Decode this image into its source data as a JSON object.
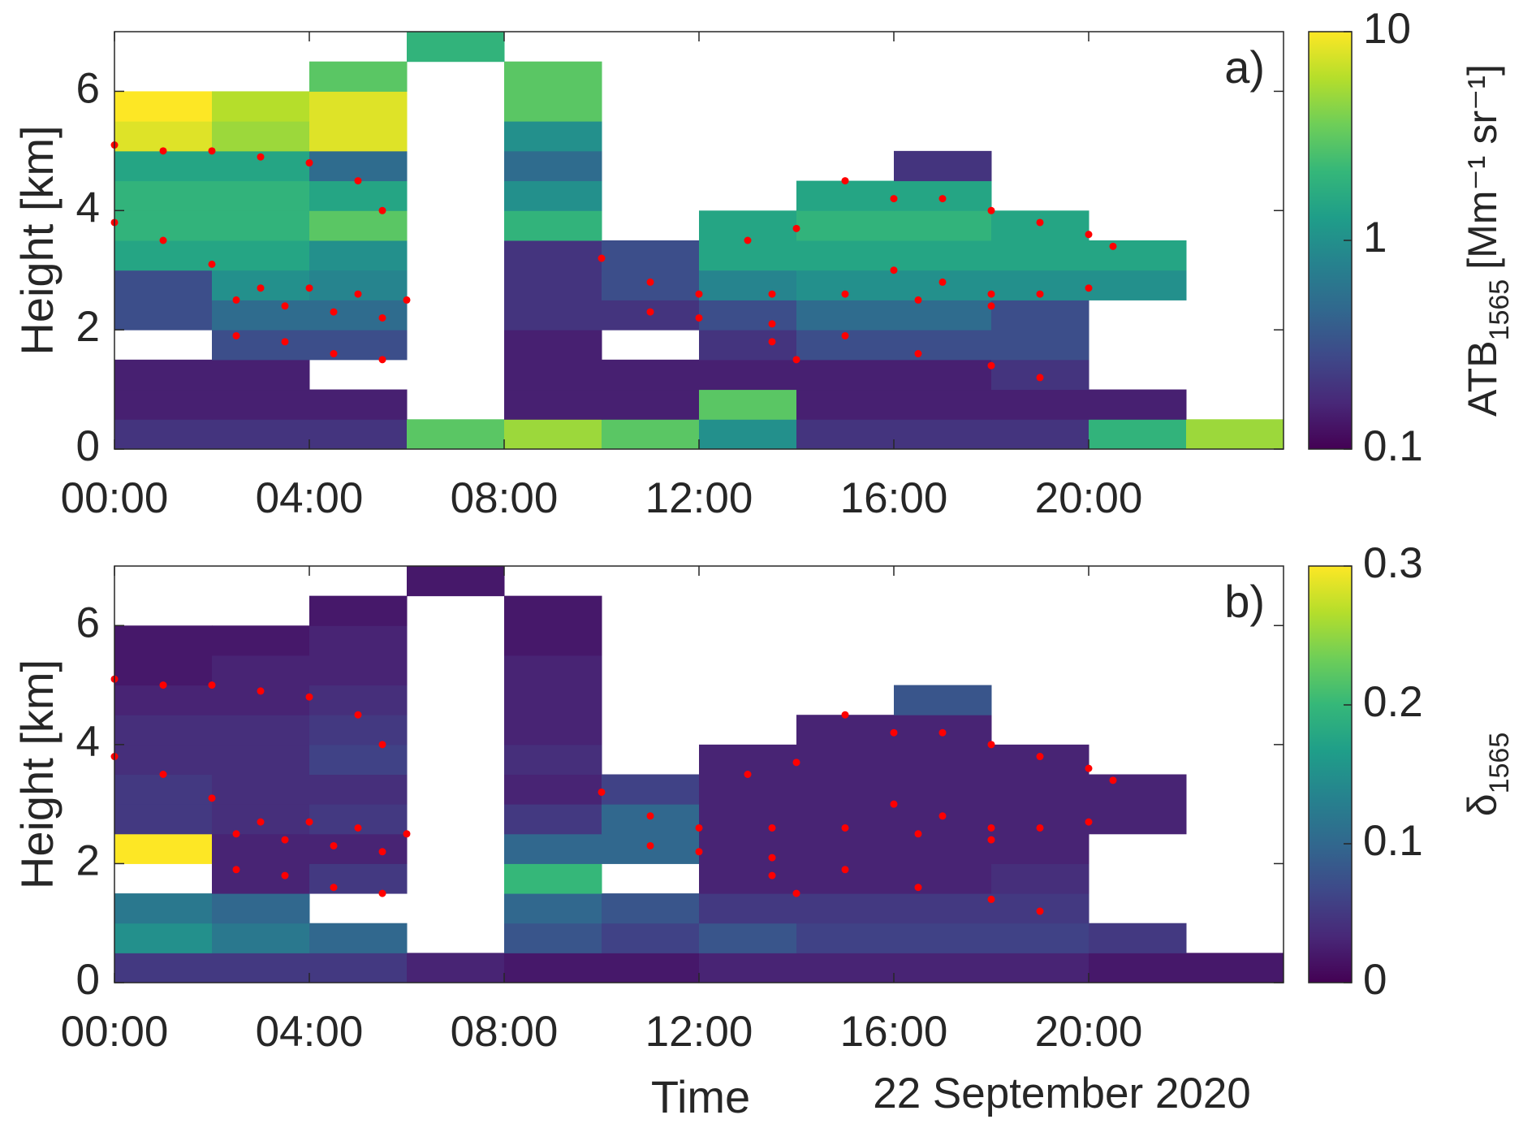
{
  "chart_data": [
    {
      "type": "heatmap",
      "label": "a)",
      "ylabel": "Height [km]",
      "colorbar_label": {
        "text": "ATB",
        "subscript": "1565",
        "unit": "[Mm⁻¹ sr⁻¹]"
      },
      "colormap": "viridis",
      "clim": [
        0.1,
        10
      ],
      "cticks": [
        0.1,
        1,
        10
      ],
      "clog": true,
      "xlim": [
        0,
        24
      ],
      "ylim": [
        0,
        7
      ],
      "xticks": [
        {
          "value": 0,
          "label": "00:00"
        },
        {
          "value": 4,
          "label": "04:00"
        },
        {
          "value": 8,
          "label": "08:00"
        },
        {
          "value": 12,
          "label": "12:00"
        },
        {
          "value": 16,
          "label": "16:00"
        },
        {
          "value": 20,
          "label": "20:00"
        }
      ],
      "yticks": [
        0,
        2,
        4,
        6
      ],
      "xbins": [
        0,
        2,
        4,
        6,
        8,
        10,
        12,
        14,
        16,
        18,
        20,
        22,
        24
      ],
      "ybins": [
        0,
        0.5,
        1,
        1.5,
        2,
        2.5,
        3,
        3.5,
        4,
        4.5,
        5,
        5.5,
        6,
        6.5,
        7
      ],
      "values": [
        [
          0.2,
          0.2,
          0.2,
          3,
          5,
          3,
          1,
          0.2,
          0.2,
          0.2,
          2,
          5
        ],
        [
          0.15,
          0.15,
          0.15,
          null,
          0.15,
          0.15,
          3,
          0.15,
          0.15,
          0.15,
          0.15,
          null
        ],
        [
          0.15,
          0.15,
          null,
          null,
          0.15,
          0.15,
          0.15,
          0.15,
          0.15,
          0.2,
          null,
          null
        ],
        [
          null,
          0.3,
          0.3,
          null,
          0.15,
          null,
          0.2,
          0.3,
          0.3,
          0.3,
          null,
          null
        ],
        [
          0.3,
          0.5,
          0.5,
          null,
          0.2,
          0.2,
          0.3,
          0.5,
          0.5,
          0.3,
          null,
          null
        ],
        [
          0.3,
          1,
          0.8,
          null,
          0.2,
          0.3,
          0.8,
          1,
          1,
          1,
          1,
          null
        ],
        [
          1.5,
          1.5,
          1,
          null,
          0.2,
          0.3,
          1.5,
          1.5,
          1.5,
          1.5,
          1.5,
          null
        ],
        [
          2,
          2,
          3,
          null,
          2,
          null,
          1.5,
          2,
          2,
          1.5,
          null,
          null
        ],
        [
          2,
          2,
          1.5,
          null,
          1,
          null,
          null,
          1.5,
          1.5,
          null,
          null,
          null
        ],
        [
          1.5,
          1.5,
          0.5,
          null,
          0.5,
          null,
          null,
          null,
          0.2,
          null,
          null,
          null
        ],
        [
          8,
          5,
          8,
          null,
          1,
          null,
          null,
          null,
          null,
          null,
          null,
          null
        ],
        [
          10,
          6,
          8,
          null,
          3,
          null,
          null,
          null,
          null,
          null,
          null,
          null
        ],
        [
          null,
          null,
          3,
          null,
          3,
          null,
          null,
          null,
          null,
          null,
          null,
          null
        ],
        [
          null,
          null,
          null,
          2,
          null,
          null,
          null,
          null,
          null,
          null,
          null,
          null
        ]
      ],
      "markers": {
        "color": "#ff0000",
        "x": [
          0,
          1,
          2,
          3,
          4,
          5,
          5.5,
          0,
          1,
          2,
          3,
          4,
          5,
          6,
          2.5,
          3.5,
          4.5,
          5.5,
          2.5,
          3.5,
          4.5,
          5.5,
          10,
          11,
          12,
          13,
          14,
          15,
          16,
          17,
          18,
          19,
          20,
          20.5,
          16,
          17,
          18,
          19,
          20,
          13.5,
          15,
          16.5,
          18,
          13.5,
          15,
          16.5,
          18,
          19,
          11,
          12,
          13.5,
          14
        ],
        "y": [
          5.1,
          5.0,
          5.0,
          4.9,
          4.8,
          4.5,
          4.0,
          3.8,
          3.5,
          3.1,
          2.7,
          2.7,
          2.6,
          2.5,
          2.5,
          2.4,
          2.3,
          2.2,
          1.9,
          1.8,
          1.6,
          1.5,
          3.2,
          2.8,
          2.6,
          3.5,
          3.7,
          4.5,
          4.2,
          4.2,
          4.0,
          3.8,
          3.6,
          3.4,
          3.0,
          2.8,
          2.6,
          2.6,
          2.7,
          2.6,
          2.6,
          2.5,
          2.4,
          2.1,
          1.9,
          1.6,
          1.4,
          1.2,
          2.3,
          2.2,
          1.8,
          1.5
        ]
      }
    },
    {
      "type": "heatmap",
      "label": "b)",
      "ylabel": "Height [km]",
      "colorbar_label": {
        "text": "δ",
        "subscript": "1565"
      },
      "colormap": "viridis",
      "clim": [
        0,
        0.3
      ],
      "cticks": [
        0,
        0.1,
        0.2,
        0.3
      ],
      "clog": false,
      "xlabel": "Time",
      "date": "22 September 2020",
      "xlim": [
        0,
        24
      ],
      "ylim": [
        0,
        7
      ],
      "xticks": [
        {
          "value": 0,
          "label": "00:00"
        },
        {
          "value": 4,
          "label": "04:00"
        },
        {
          "value": 8,
          "label": "08:00"
        },
        {
          "value": 12,
          "label": "12:00"
        },
        {
          "value": 16,
          "label": "16:00"
        },
        {
          "value": 20,
          "label": "20:00"
        }
      ],
      "yticks": [
        0,
        2,
        4,
        6
      ],
      "xbins": [
        0,
        2,
        4,
        6,
        8,
        10,
        12,
        14,
        16,
        18,
        20,
        22,
        24
      ],
      "ybins": [
        0,
        0.5,
        1,
        1.5,
        2,
        2.5,
        3,
        3.5,
        4,
        4.5,
        5,
        5.5,
        6,
        6.5,
        7
      ],
      "values": [
        [
          0.05,
          0.05,
          0.05,
          0.03,
          0.02,
          0.02,
          0.03,
          0.03,
          0.03,
          0.03,
          0.02,
          0.02
        ],
        [
          0.15,
          0.12,
          0.1,
          null,
          0.08,
          0.06,
          0.08,
          0.06,
          0.06,
          0.06,
          0.05,
          null
        ],
        [
          0.12,
          0.1,
          null,
          null,
          0.1,
          0.08,
          0.05,
          0.05,
          0.05,
          0.05,
          null,
          null
        ],
        [
          null,
          0.03,
          0.05,
          null,
          0.2,
          null,
          0.03,
          0.03,
          0.03,
          0.04,
          null,
          null
        ],
        [
          0.3,
          0.03,
          0.03,
          null,
          0.1,
          0.1,
          0.03,
          0.03,
          0.03,
          0.03,
          null,
          null
        ],
        [
          0.05,
          0.04,
          0.05,
          null,
          0.05,
          0.1,
          0.03,
          0.03,
          0.03,
          0.03,
          0.03,
          null
        ],
        [
          0.05,
          0.04,
          0.04,
          null,
          0.03,
          0.06,
          0.03,
          0.03,
          0.03,
          0.03,
          0.03,
          null
        ],
        [
          0.04,
          0.04,
          0.06,
          null,
          0.04,
          null,
          0.03,
          0.03,
          0.03,
          0.03,
          null,
          null
        ],
        [
          0.04,
          0.04,
          0.05,
          null,
          0.03,
          null,
          null,
          0.03,
          0.03,
          null,
          null,
          null
        ],
        [
          0.03,
          0.03,
          0.04,
          null,
          0.03,
          null,
          null,
          null,
          0.08,
          null,
          null,
          null
        ],
        [
          0.02,
          0.03,
          0.03,
          null,
          0.03,
          null,
          null,
          null,
          null,
          null,
          null,
          null
        ],
        [
          0.02,
          0.02,
          0.03,
          null,
          0.02,
          null,
          null,
          null,
          null,
          null,
          null,
          null
        ],
        [
          null,
          null,
          0.02,
          null,
          0.02,
          null,
          null,
          null,
          null,
          null,
          null,
          null
        ],
        [
          null,
          null,
          null,
          0.02,
          null,
          null,
          null,
          null,
          null,
          null,
          null,
          null
        ]
      ],
      "markers": {
        "color": "#ff0000",
        "x": [
          0,
          1,
          2,
          3,
          4,
          5,
          5.5,
          0,
          1,
          2,
          3,
          4,
          5,
          6,
          2.5,
          3.5,
          4.5,
          5.5,
          2.5,
          3.5,
          4.5,
          5.5,
          10,
          11,
          12,
          13,
          14,
          15,
          16,
          17,
          18,
          19,
          20,
          20.5,
          16,
          17,
          18,
          19,
          20,
          13.5,
          15,
          16.5,
          18,
          13.5,
          15,
          16.5,
          18,
          19,
          11,
          12,
          13.5,
          14
        ],
        "y": [
          5.1,
          5.0,
          5.0,
          4.9,
          4.8,
          4.5,
          4.0,
          3.8,
          3.5,
          3.1,
          2.7,
          2.7,
          2.6,
          2.5,
          2.5,
          2.4,
          2.3,
          2.2,
          1.9,
          1.8,
          1.6,
          1.5,
          3.2,
          2.8,
          2.6,
          3.5,
          3.7,
          4.5,
          4.2,
          4.2,
          4.0,
          3.8,
          3.6,
          3.4,
          3.0,
          2.8,
          2.6,
          2.6,
          2.7,
          2.6,
          2.6,
          2.5,
          2.4,
          2.1,
          1.9,
          1.6,
          1.4,
          1.2,
          2.3,
          2.2,
          1.8,
          1.5
        ]
      }
    }
  ]
}
